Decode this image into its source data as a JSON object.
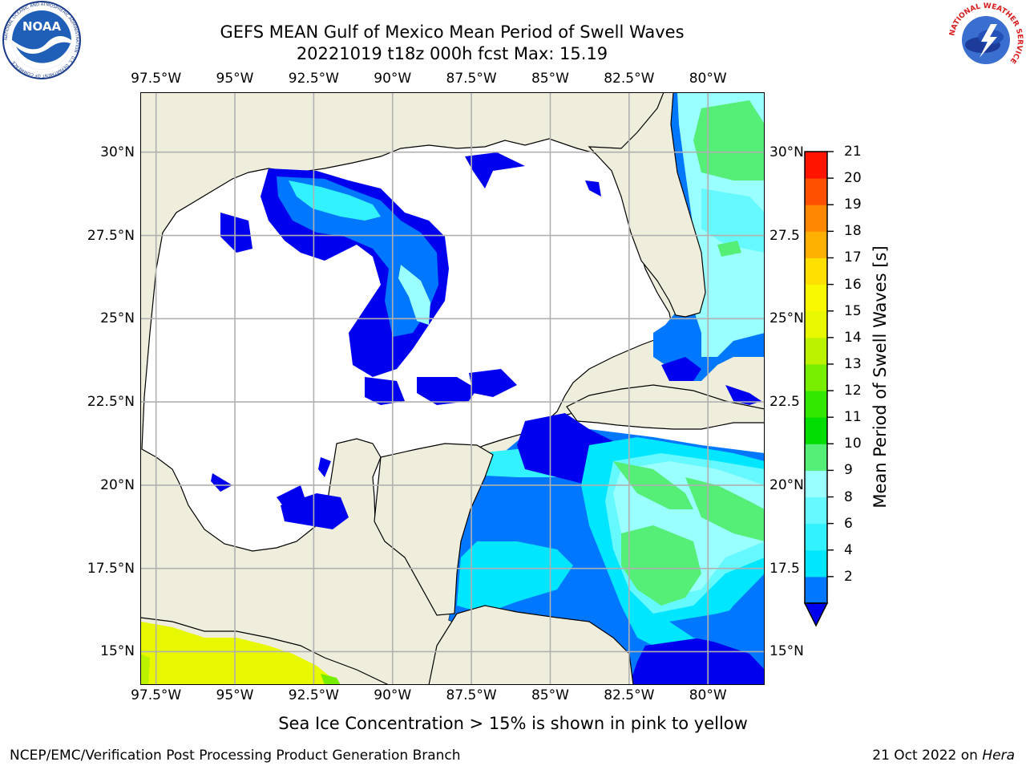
{
  "header": {
    "title_line1": "GEFS MEAN Gulf of Mexico Mean Period of Swell Waves",
    "title_line2": "20221019 t18z 000h fcst   Max: 15.19"
  },
  "logos": {
    "left": {
      "name": "NOAA",
      "text": "NOAA",
      "ring_text": "NATIONAL OCEANIC AND ATMOSPHERIC ADMINISTRATION · U.S. DEPARTMENT OF COMMERCE"
    },
    "right": {
      "name": "National Weather Service",
      "ring_text": "NATIONAL WEATHER SERVICE"
    }
  },
  "map": {
    "lon_ticks": [
      "97.5°W",
      "95°W",
      "92.5°W",
      "90°W",
      "87.5°W",
      "85°W",
      "82.5°W",
      "80°W"
    ],
    "lat_ticks_left": [
      "30°N",
      "27.5°N",
      "25°N",
      "22.5°N",
      "20°N",
      "17.5°N",
      "15°N"
    ],
    "lat_ticks_right": [
      "30°N",
      "27.5",
      "25°N",
      "22.5",
      "20°N",
      "17.5",
      "15°N"
    ],
    "lon_range": [
      -98,
      -78.2
    ],
    "lat_range": [
      14,
      31.8
    ],
    "colors": {
      "land": "#efeedc",
      "ocean_nodata": "#ffffff",
      "grid": "#b0b0b0",
      "coast": "#000000"
    }
  },
  "colorbar": {
    "title": "Mean Period of Swell Waves [s]",
    "labels": [
      "21",
      "20",
      "19",
      "18",
      "17",
      "16",
      "15",
      "14",
      "13",
      "12",
      "11",
      "10",
      "9",
      "8",
      "6",
      "4",
      "2"
    ],
    "levels": [
      2,
      4,
      6,
      8,
      9,
      10,
      11,
      12,
      13,
      14,
      15,
      16,
      17,
      18,
      19,
      20,
      21
    ],
    "colors": [
      "#0077ff",
      "#00e6ff",
      "#33f2ff",
      "#66f8ff",
      "#99ffff",
      "#55ee77",
      "#00dd00",
      "#33e800",
      "#77ee00",
      "#bbf200",
      "#e8f800",
      "#f8f800",
      "#ffe000",
      "#ffb000",
      "#ff8800",
      "#ff5000",
      "#ff1400"
    ],
    "under_color": "#0000ee"
  },
  "chart_data": {
    "type": "heatmap",
    "title": "GEFS MEAN Gulf of Mexico Mean Period of Swell Waves",
    "subtitle": "20221019 t18z 000h fcst   Max: 15.19",
    "xlabel": "",
    "ylabel": "",
    "xlim": [
      -98,
      -78.2
    ],
    "ylim": [
      14,
      31.8
    ],
    "x_ticks": [
      "97.5°W",
      "95°W",
      "92.5°W",
      "90°W",
      "87.5°W",
      "85°W",
      "82.5°W",
      "80°W"
    ],
    "y_ticks": [
      "30°N",
      "27.5°N",
      "25°N",
      "22.5°N",
      "20°N",
      "17.5°N",
      "15°N"
    ],
    "colorbar_label": "Mean Period of Swell Waves [s]",
    "colorbar_range": [
      2,
      21
    ],
    "max": 15.19
  },
  "footer": {
    "note": "Sea Ice Concentration > 15% is shown in pink to yellow",
    "left": "NCEP/EMC/Verification Post Processing Product Generation Branch",
    "right_prefix": "21 Oct 2022 on ",
    "right_host": "Hera"
  }
}
